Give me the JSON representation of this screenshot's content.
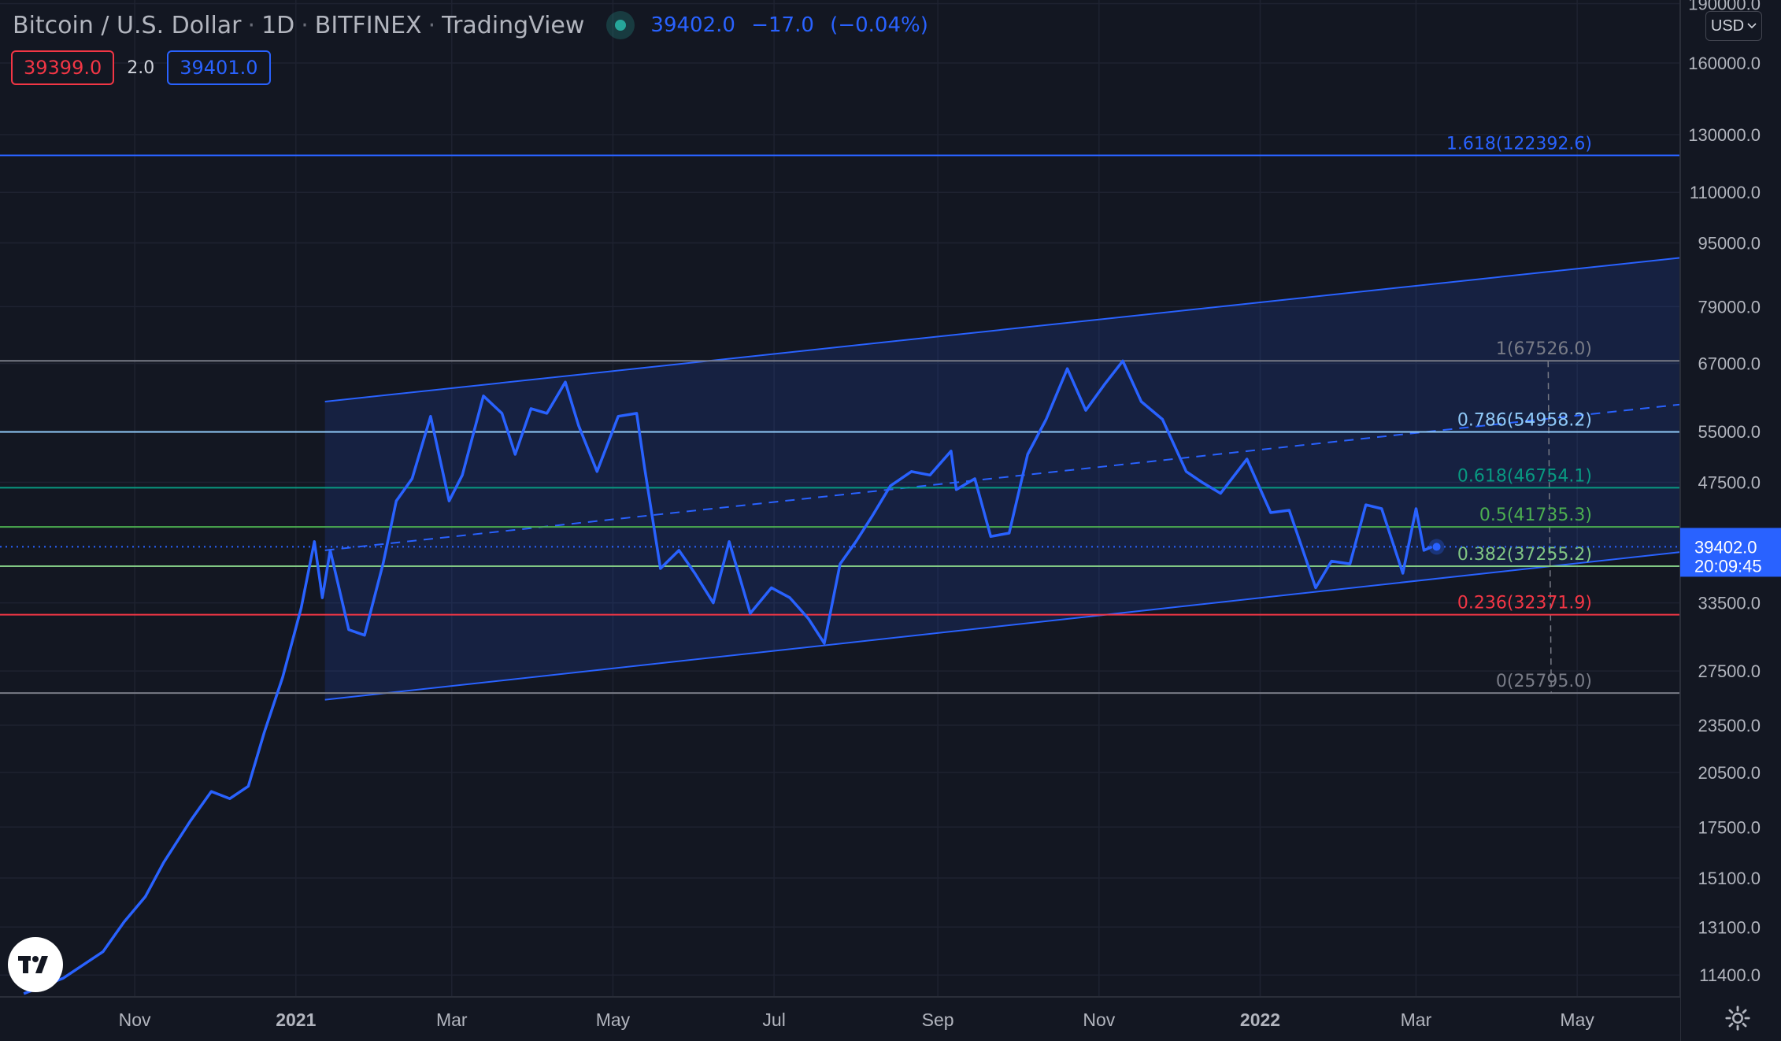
{
  "header": {
    "symbol": "Bitcoin / U.S. Dollar",
    "interval": "1D",
    "exchange": "BITFINEX",
    "source": "TradingView",
    "last": "39402.0",
    "change": "−17.0",
    "change_pct": "(−0.04%)"
  },
  "bid_ask": {
    "bid": "39399.0",
    "spread": "2.0",
    "ask": "39401.0"
  },
  "currency_selector": "USD",
  "countdown": "20:09:45",
  "icons": {
    "logo": "tradingview-logo-icon",
    "settings": "gear-icon",
    "live": "live-status-icon",
    "chevron": "chevron-down-icon"
  },
  "colors": {
    "background": "#131722",
    "price_line": "#2962ff",
    "channel": "#2962ff",
    "fib_1618": "#2962ff",
    "fib_1": "#787b86",
    "fib_0786": "#90caf9",
    "fib_0618": "#089981",
    "fib_05": "#4caf50",
    "fib_0382": "#81c784",
    "fib_0236": "#f23645",
    "fib_0": "#787b86"
  },
  "chart_data": {
    "type": "line",
    "scale": "log",
    "y_axis_labels": [
      "190000.0",
      "160000.0",
      "130000.0",
      "110000.0",
      "95000.0",
      "79000.0",
      "67000.0",
      "55000.0",
      "47500.0",
      "33500.0",
      "27500.0",
      "23500.0",
      "20500.0",
      "17500.0",
      "15100.0",
      "13100.0",
      "11400.0"
    ],
    "y_axis_values": [
      190000,
      160000,
      130000,
      110000,
      95000,
      79000,
      67000,
      55000,
      47500,
      33500,
      27500,
      23500,
      20500,
      17500,
      15100,
      13100,
      11400
    ],
    "ylim": [
      10700,
      192000
    ],
    "x_ticks": [
      {
        "label": "Nov",
        "date": "2020-11-01",
        "bold": false
      },
      {
        "label": "2021",
        "date": "2021-01-01",
        "bold": true
      },
      {
        "label": "Mar",
        "date": "2021-03-01",
        "bold": false
      },
      {
        "label": "May",
        "date": "2021-05-01",
        "bold": false
      },
      {
        "label": "Jul",
        "date": "2021-07-01",
        "bold": false
      },
      {
        "label": "Sep",
        "date": "2021-09-01",
        "bold": false
      },
      {
        "label": "Nov",
        "date": "2021-11-01",
        "bold": false
      },
      {
        "label": "2022",
        "date": "2022-01-01",
        "bold": true
      },
      {
        "label": "Mar",
        "date": "2022-03-01",
        "bold": false
      },
      {
        "label": "May",
        "date": "2022-05-01",
        "bold": false
      }
    ],
    "xlim": [
      "2020-09-11",
      "2022-06-09"
    ],
    "grid": true,
    "series": [
      {
        "points": [
          [
            "2020-09-20",
            10800
          ],
          [
            "2020-10-05",
            11300
          ],
          [
            "2020-10-20",
            12200
          ],
          [
            "2020-10-28",
            13300
          ],
          [
            "2020-11-05",
            14300
          ],
          [
            "2020-11-12",
            15800
          ],
          [
            "2020-11-22",
            17800
          ],
          [
            "2020-11-30",
            19400
          ],
          [
            "2020-12-07",
            19000
          ],
          [
            "2020-12-14",
            19700
          ],
          [
            "2020-12-20",
            23000
          ],
          [
            "2020-12-27",
            27000
          ],
          [
            "2021-01-03",
            33000
          ],
          [
            "2021-01-08",
            40000
          ],
          [
            "2021-01-11",
            34000
          ],
          [
            "2021-01-14",
            39000
          ],
          [
            "2021-01-21",
            31000
          ],
          [
            "2021-01-27",
            30500
          ],
          [
            "2021-02-03",
            37500
          ],
          [
            "2021-02-08",
            45000
          ],
          [
            "2021-02-14",
            48000
          ],
          [
            "2021-02-21",
            57500
          ],
          [
            "2021-02-28",
            45000
          ],
          [
            "2021-03-05",
            48500
          ],
          [
            "2021-03-13",
            61000
          ],
          [
            "2021-03-20",
            58000
          ],
          [
            "2021-03-25",
            51500
          ],
          [
            "2021-03-31",
            58800
          ],
          [
            "2021-04-06",
            58000
          ],
          [
            "2021-04-13",
            63500
          ],
          [
            "2021-04-18",
            56000
          ],
          [
            "2021-04-25",
            49000
          ],
          [
            "2021-05-03",
            57500
          ],
          [
            "2021-05-10",
            58000
          ],
          [
            "2021-05-13",
            49500
          ],
          [
            "2021-05-19",
            37000
          ],
          [
            "2021-05-26",
            39000
          ],
          [
            "2021-06-01",
            36500
          ],
          [
            "2021-06-08",
            33500
          ],
          [
            "2021-06-14",
            40000
          ],
          [
            "2021-06-22",
            32500
          ],
          [
            "2021-06-30",
            35000
          ],
          [
            "2021-07-07",
            34000
          ],
          [
            "2021-07-14",
            32000
          ],
          [
            "2021-07-20",
            29800
          ],
          [
            "2021-07-26",
            37500
          ],
          [
            "2021-08-01",
            40000
          ],
          [
            "2021-08-07",
            43000
          ],
          [
            "2021-08-14",
            47000
          ],
          [
            "2021-08-22",
            49000
          ],
          [
            "2021-08-29",
            48500
          ],
          [
            "2021-09-06",
            52000
          ],
          [
            "2021-09-08",
            46500
          ],
          [
            "2021-09-15",
            48000
          ],
          [
            "2021-09-21",
            40600
          ],
          [
            "2021-09-28",
            41000
          ],
          [
            "2021-10-05",
            51500
          ],
          [
            "2021-10-12",
            57000
          ],
          [
            "2021-10-20",
            66000
          ],
          [
            "2021-10-27",
            58500
          ],
          [
            "2021-11-03",
            63000
          ],
          [
            "2021-11-10",
            67500
          ],
          [
            "2021-11-17",
            60000
          ],
          [
            "2021-11-25",
            57000
          ],
          [
            "2021-12-04",
            49000
          ],
          [
            "2021-12-10",
            47500
          ],
          [
            "2021-12-17",
            46000
          ],
          [
            "2021-12-27",
            50800
          ],
          [
            "2022-01-05",
            43500
          ],
          [
            "2022-01-12",
            43800
          ],
          [
            "2022-01-22",
            35000
          ],
          [
            "2022-01-28",
            37800
          ],
          [
            "2022-02-04",
            37500
          ],
          [
            "2022-02-10",
            44500
          ],
          [
            "2022-02-16",
            44000
          ],
          [
            "2022-02-24",
            36500
          ],
          [
            "2022-03-01",
            44000
          ],
          [
            "2022-03-04",
            39000
          ],
          [
            "2022-03-07",
            39400
          ]
        ]
      }
    ],
    "current_price": 39402,
    "channel": {
      "start": "2021-01-12",
      "upper": [
        [
          "2021-01-12",
          60000
        ],
        [
          "2022-06-09",
          91000
        ]
      ],
      "lower": [
        [
          "2021-01-12",
          25300
        ],
        [
          "2022-06-09",
          38800
        ]
      ],
      "median": [
        [
          "2021-01-12",
          39000
        ],
        [
          "2022-06-09",
          59500
        ]
      ]
    },
    "fib_levels": [
      {
        "ratio": "1.618",
        "label": "1.618(122392.6)",
        "value": 122392.6,
        "color": "#2962ff"
      },
      {
        "ratio": "1",
        "label": "1(67526.0)",
        "value": 67526.0,
        "color": "#787b86"
      },
      {
        "ratio": "0.786",
        "label": "0.786(54958.2)",
        "value": 54958.2,
        "color": "#90caf9"
      },
      {
        "ratio": "0.618",
        "label": "0.618(46754.1)",
        "value": 46754.1,
        "color": "#089981"
      },
      {
        "ratio": "0.5",
        "label": "0.5(41735.3)",
        "value": 41735.3,
        "color": "#4caf50"
      },
      {
        "ratio": "0.382",
        "label": "0.382(37255.2)",
        "value": 37255.2,
        "color": "#81c784"
      },
      {
        "ratio": "0.236",
        "label": "0.236(32371.9)",
        "value": 32371.9,
        "color": "#f23645"
      },
      {
        "ratio": "0",
        "label": "0(25795.0)",
        "value": 25795.0,
        "color": "#787b86"
      }
    ],
    "vertical_marker_date": "2022-04-20",
    "price_label": "39402.0"
  }
}
